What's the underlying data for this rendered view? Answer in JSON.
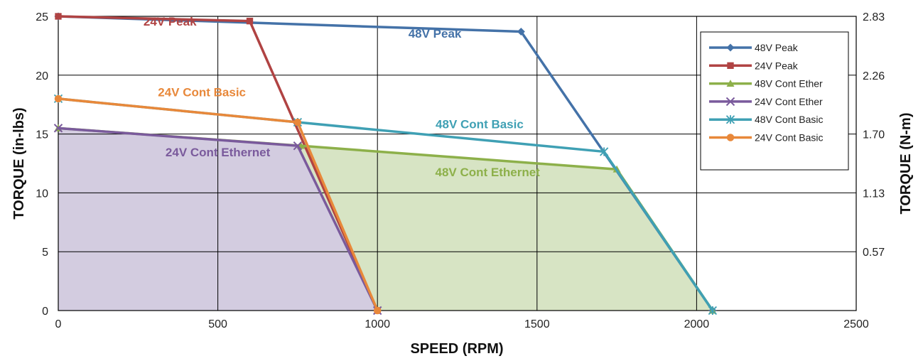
{
  "chart_data": {
    "type": "line",
    "xlabel": "SPEED (RPM)",
    "ylabel": "TORQUE (in-lbs)",
    "y2label": "TORQUE (N-m)",
    "xlim": [
      0,
      2500
    ],
    "ylim": [
      0,
      25
    ],
    "x_ticks": [
      "0",
      "500",
      "1000",
      "1500",
      "2000",
      "2500"
    ],
    "y_ticks": [
      "0",
      "5",
      "10",
      "15",
      "20",
      "25"
    ],
    "y2_ticks": [
      "0.57",
      "1.13",
      "1.70",
      "2.26",
      "2.83"
    ],
    "y2_tick_values": [
      5,
      10,
      15,
      20,
      25
    ],
    "grid": true,
    "legend_position": "top-right",
    "series": [
      {
        "name": "48V Peak",
        "color": "#4472a8",
        "marker": "diamond",
        "points": [
          [
            0,
            25
          ],
          [
            1450,
            23.7
          ],
          [
            2050,
            0
          ]
        ]
      },
      {
        "name": "24V Peak",
        "color": "#b04343",
        "marker": "square",
        "points": [
          [
            0,
            25
          ],
          [
            600,
            24.6
          ],
          [
            1000,
            0
          ]
        ]
      },
      {
        "name": "48V Cont Ether",
        "color": "#8db04a",
        "marker": "triangle",
        "points": [
          [
            0,
            15.5
          ],
          [
            760,
            14
          ],
          [
            1750,
            12
          ],
          [
            2050,
            0
          ]
        ]
      },
      {
        "name": "24V Cont Ether",
        "color": "#7a5a9c",
        "marker": "x",
        "points": [
          [
            0,
            15.5
          ],
          [
            750,
            14
          ],
          [
            1000,
            0
          ]
        ]
      },
      {
        "name": "48V Cont Basic",
        "color": "#3fa0b4",
        "marker": "star",
        "points": [
          [
            0,
            18
          ],
          [
            750,
            16
          ],
          [
            1710,
            13.5
          ],
          [
            2050,
            0
          ]
        ]
      },
      {
        "name": "24V Cont Basic",
        "color": "#e8883a",
        "marker": "circle",
        "points": [
          [
            0,
            18
          ],
          [
            750,
            16
          ],
          [
            1000,
            0
          ]
        ]
      }
    ],
    "fills": [
      {
        "color": "#d7e4c4",
        "points": [
          [
            0,
            15.5
          ],
          [
            760,
            14
          ],
          [
            1750,
            12
          ],
          [
            2050,
            0
          ],
          [
            0,
            0
          ]
        ]
      },
      {
        "color": "#d3cce0",
        "points": [
          [
            0,
            15.5
          ],
          [
            750,
            14
          ],
          [
            1000,
            0
          ],
          [
            0,
            0
          ]
        ]
      }
    ],
    "annotations": [
      {
        "text": "24V Peak",
        "color": "#b04343",
        "x": 350,
        "y": 24.2
      },
      {
        "text": "48V Peak",
        "color": "#4472a8",
        "x": 1180,
        "y": 23.2
      },
      {
        "text": "24V Cont Basic",
        "color": "#e8883a",
        "x": 450,
        "y": 18.2
      },
      {
        "text": "48V Cont Basic",
        "color": "#3fa0b4",
        "x": 1320,
        "y": 15.5
      },
      {
        "text": "24V Cont Ethernet",
        "color": "#7a5a9c",
        "x": 500,
        "y": 13.1
      },
      {
        "text": "48V Cont Ethernet",
        "color": "#8db04a",
        "x": 1345,
        "y": 11.4
      }
    ]
  }
}
